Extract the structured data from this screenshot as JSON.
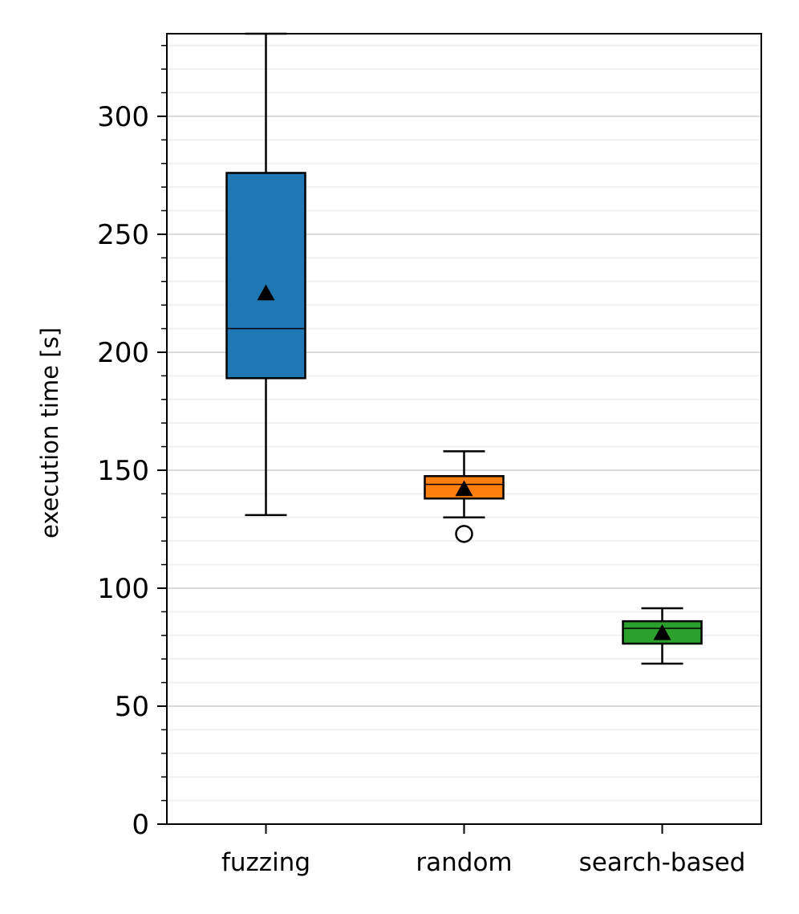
{
  "chart_data": {
    "type": "box",
    "ylabel": "execution time [s]",
    "ylim": [
      0,
      335
    ],
    "yticks": [
      0,
      50,
      100,
      150,
      200,
      250,
      300
    ],
    "minor_step": 10,
    "grid": "horizontal major and minor",
    "categories": [
      "fuzzing",
      "random",
      "search-based"
    ],
    "boxes": [
      {
        "name": "fuzzing",
        "color": "#1f77b4",
        "whisker_low": 131,
        "q1": 189,
        "median": 210,
        "q3": 276,
        "whisker_high": 335,
        "mean": 225,
        "outliers": []
      },
      {
        "name": "random",
        "color": "#ff7f0e",
        "whisker_low": 130,
        "q1": 138,
        "median": 144,
        "q3": 147.5,
        "whisker_high": 158,
        "mean": 142,
        "outliers": [
          123
        ]
      },
      {
        "name": "search-based",
        "color": "#2ca02c",
        "whisker_low": 68,
        "q1": 76.5,
        "median": 83,
        "q3": 86,
        "whisker_high": 91.5,
        "mean": 81,
        "outliers": []
      }
    ]
  }
}
